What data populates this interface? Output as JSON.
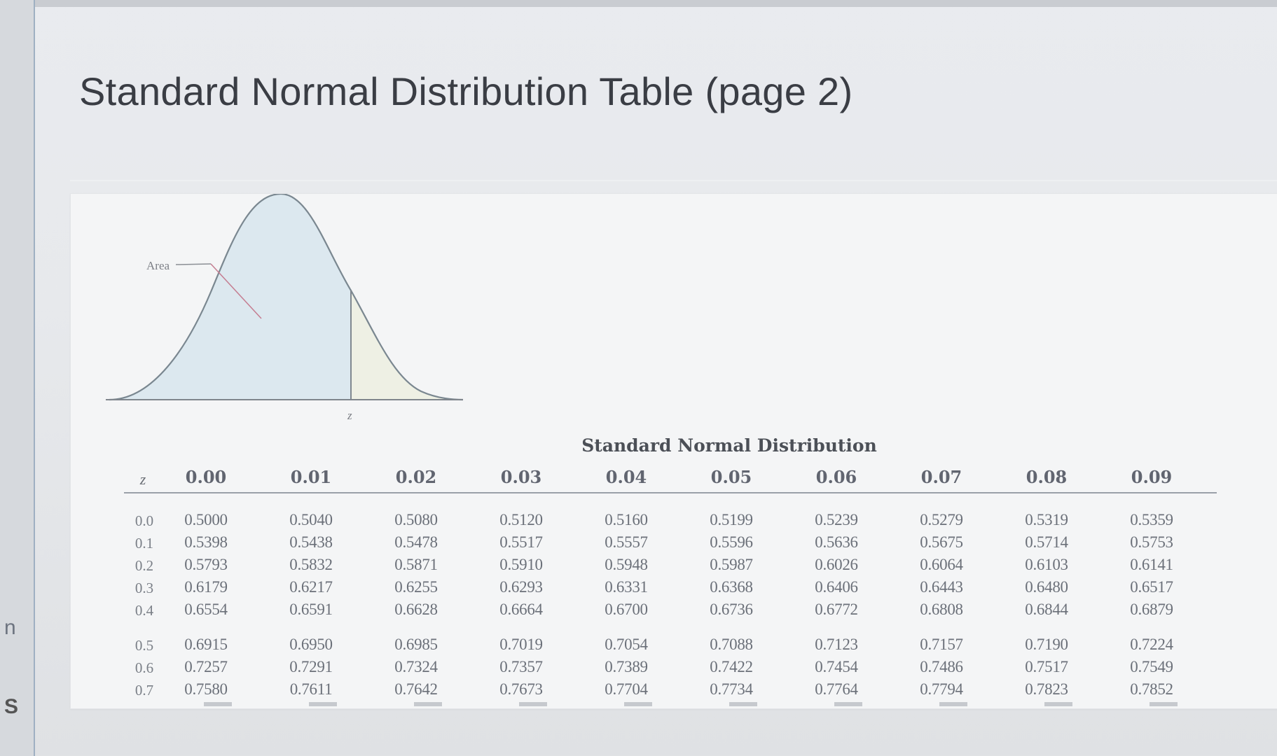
{
  "page": {
    "title": "Standard Normal Distribution Table (page 2)"
  },
  "edge": {
    "n": "n",
    "s": "S"
  },
  "figure": {
    "area_label": "Area",
    "z_label": "z"
  },
  "table": {
    "heading": "Standard Normal Distribution",
    "z_header": "z",
    "columns": [
      "0.00",
      "0.01",
      "0.02",
      "0.03",
      "0.04",
      "0.05",
      "0.06",
      "0.07",
      "0.08",
      "0.09"
    ],
    "rows": [
      {
        "z": "0.0",
        "values": [
          "0.5000",
          "0.5040",
          "0.5080",
          "0.5120",
          "0.5160",
          "0.5199",
          "0.5239",
          "0.5279",
          "0.5319",
          "0.5359"
        ]
      },
      {
        "z": "0.1",
        "values": [
          "0.5398",
          "0.5438",
          "0.5478",
          "0.5517",
          "0.5557",
          "0.5596",
          "0.5636",
          "0.5675",
          "0.5714",
          "0.5753"
        ]
      },
      {
        "z": "0.2",
        "values": [
          "0.5793",
          "0.5832",
          "0.5871",
          "0.5910",
          "0.5948",
          "0.5987",
          "0.6026",
          "0.6064",
          "0.6103",
          "0.6141"
        ]
      },
      {
        "z": "0.3",
        "values": [
          "0.6179",
          "0.6217",
          "0.6255",
          "0.6293",
          "0.6331",
          "0.6368",
          "0.6406",
          "0.6443",
          "0.6480",
          "0.6517"
        ]
      },
      {
        "z": "0.4",
        "values": [
          "0.6554",
          "0.6591",
          "0.6628",
          "0.6664",
          "0.6700",
          "0.6736",
          "0.6772",
          "0.6808",
          "0.6844",
          "0.6879"
        ]
      },
      {
        "z": "0.5",
        "values": [
          "0.6915",
          "0.6950",
          "0.6985",
          "0.7019",
          "0.7054",
          "0.7088",
          "0.7123",
          "0.7157",
          "0.7190",
          "0.7224"
        ]
      },
      {
        "z": "0.6",
        "values": [
          "0.7257",
          "0.7291",
          "0.7324",
          "0.7357",
          "0.7389",
          "0.7422",
          "0.7454",
          "0.7486",
          "0.7517",
          "0.7549"
        ]
      },
      {
        "z": "0.7",
        "values": [
          "0.7580",
          "0.7611",
          "0.7642",
          "0.7673",
          "0.7704",
          "0.7734",
          "0.7764",
          "0.7794",
          "0.7823",
          "0.7852"
        ]
      }
    ]
  }
}
